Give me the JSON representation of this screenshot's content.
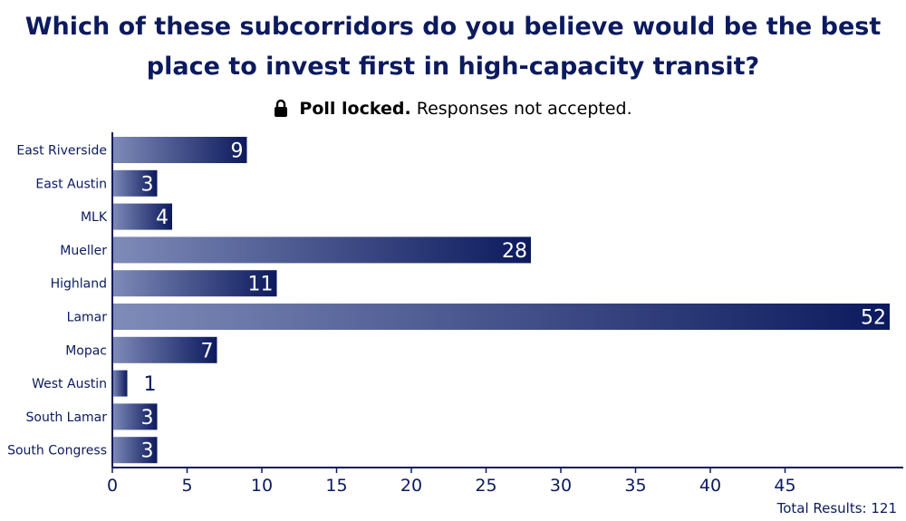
{
  "title_line1": "Which of these subcorridors do you believe would be the best",
  "title_line2": "place to invest first in high-capacity transit?",
  "status": {
    "icon": "lock-icon",
    "bold": "Poll locked.",
    "text": "Responses not accepted."
  },
  "total": "Total Results: 121",
  "colors": {
    "bar_dark": "#0c1a5e",
    "bar_light": "#7f8bb8",
    "text": "#0c1a5e"
  },
  "chart_data": {
    "type": "bar",
    "orientation": "horizontal",
    "categories": [
      "East Riverside",
      "East Austin",
      "MLK",
      "Mueller",
      "Highland",
      "Lamar",
      "Mopac",
      "West Austin",
      "South Lamar",
      "South Congress"
    ],
    "values": [
      9,
      3,
      4,
      28,
      11,
      52,
      7,
      1,
      3,
      3
    ],
    "xticks": [
      0,
      5,
      10,
      15,
      20,
      25,
      30,
      35,
      40,
      45
    ],
    "xlim": [
      0,
      52
    ],
    "grid": false
  }
}
